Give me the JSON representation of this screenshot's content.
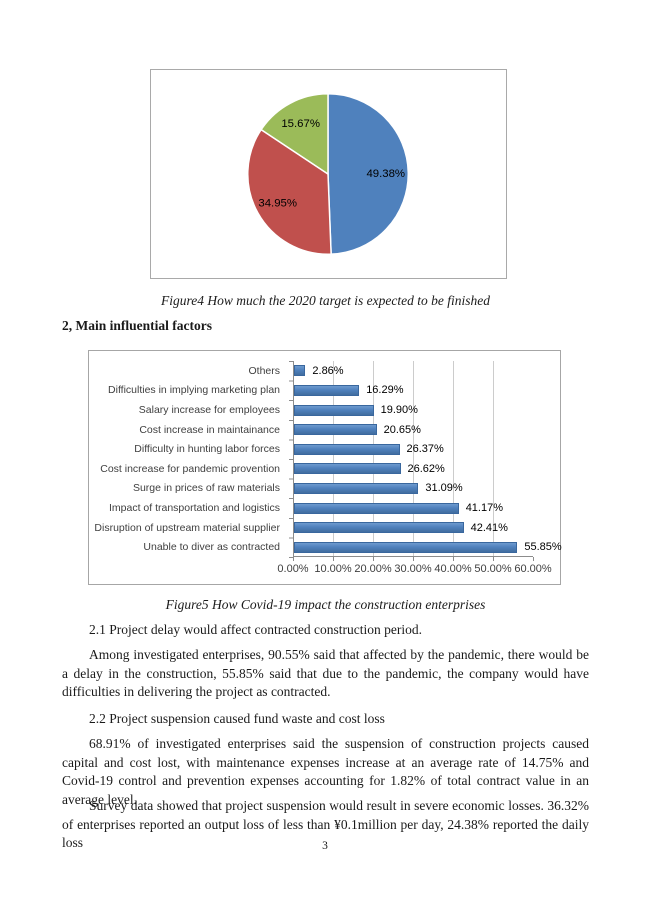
{
  "figure4_caption": "Figure4 How much the 2020 target is expected to be finished",
  "section_heading": "2, Main influential factors",
  "figure5_caption": "Figure5 How Covid-19 impact the construction enterprises",
  "paragraphs": [
    "2.1 Project delay would affect contracted construction period.",
    "Among investigated enterprises, 90.55% said that affected by the pandemic, there would be a delay in the construction, 55.85% said that due to the pandemic, the company would have difficulties in delivering the project as contracted.",
    "2.2 Project suspension caused fund waste and cost loss",
    "68.91% of investigated enterprises said the suspension of construction projects caused capital and cost lost, with maintenance expenses increase at an average rate of 14.75% and Covid-19 control and prevention expenses accounting for 1.82% of total contract value in an average level.",
    "Survey data showed that project suspension would result in severe economic losses. 36.32% of enterprises reported an output loss of less than ¥0.1million per day, 24.38% reported the daily loss"
  ],
  "page_number": "3",
  "colors": {
    "pie_blue": "#4f81bd",
    "pie_red": "#c0504d",
    "pie_green": "#9bbb59",
    "bar_blue": "#4f81bd"
  },
  "chart_data": [
    {
      "type": "pie",
      "title": "Figure4 How much the 2020 target is expected to be finished",
      "slices": [
        {
          "label": "49.38%",
          "value": 49.38,
          "color": "#4f81bd"
        },
        {
          "label": "34.95%",
          "value": 34.95,
          "color": "#c0504d"
        },
        {
          "label": "15.67%",
          "value": 15.67,
          "color": "#9bbb59"
        }
      ],
      "start_angle_deg": 0,
      "direction": "clockwise",
      "legend": "none"
    },
    {
      "type": "bar",
      "orientation": "horizontal",
      "title": "Figure5 How Covid-19 impact the construction enterprises",
      "categories": [
        "Others",
        "Difficulties in implying marketing plan",
        "Salary increase for employees",
        "Cost increase in maintainance",
        "Difficulty in hunting labor forces",
        "Cost increase for pandemic provention",
        "Surge in prices of raw materials",
        "Impact of transportation and logistics",
        "Disruption of upstream material supplier",
        "Unable to diver as contracted"
      ],
      "values": [
        2.86,
        16.29,
        19.9,
        20.65,
        26.37,
        26.62,
        31.09,
        41.17,
        42.41,
        55.85
      ],
      "value_labels": [
        "2.86%",
        "16.29%",
        "19.90%",
        "20.65%",
        "26.37%",
        "26.62%",
        "31.09%",
        "41.17%",
        "42.41%",
        "55.85%"
      ],
      "x_ticks": [
        "0.00%",
        "10.00%",
        "20.00%",
        "30.00%",
        "40.00%",
        "50.00%",
        "60.00%"
      ],
      "xlim": [
        0,
        60
      ],
      "bar_color": "#4f81bd",
      "grid": true,
      "legend": "none"
    }
  ]
}
